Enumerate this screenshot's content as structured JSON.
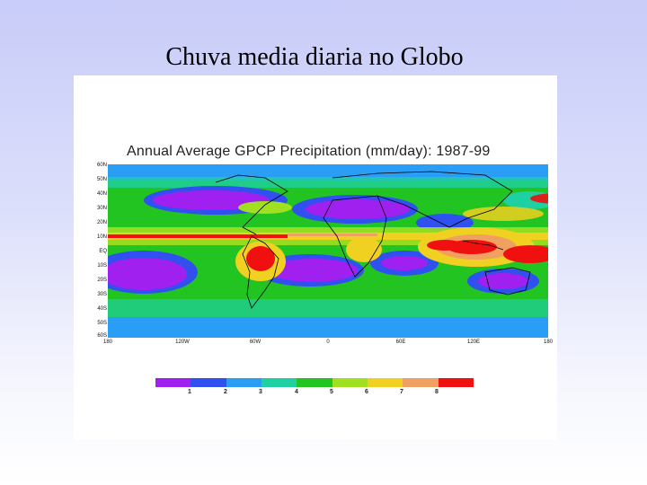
{
  "slide": {
    "title": "Chuva media diaria no Globo"
  },
  "figure": {
    "title": "Annual Average GPCP Precipitation (mm/day): 1987-99",
    "lat_labels": [
      "60N",
      "50N",
      "40N",
      "30N",
      "20N",
      "10N",
      "EQ",
      "10S",
      "20S",
      "30S",
      "40S",
      "50S",
      "60S"
    ],
    "lon_labels": [
      "180",
      "120W",
      "60W",
      "0",
      "60E",
      "120E",
      "180"
    ],
    "colorbar": {
      "labels": [
        "1",
        "2",
        "3",
        "4",
        "5",
        "6",
        "7",
        "8"
      ],
      "colors": [
        "#a020f0",
        "#3050f0",
        "#2a9df4",
        "#1fd0a0",
        "#22c422",
        "#a0e020",
        "#f0d020",
        "#f0a060",
        "#f01010"
      ]
    }
  }
}
